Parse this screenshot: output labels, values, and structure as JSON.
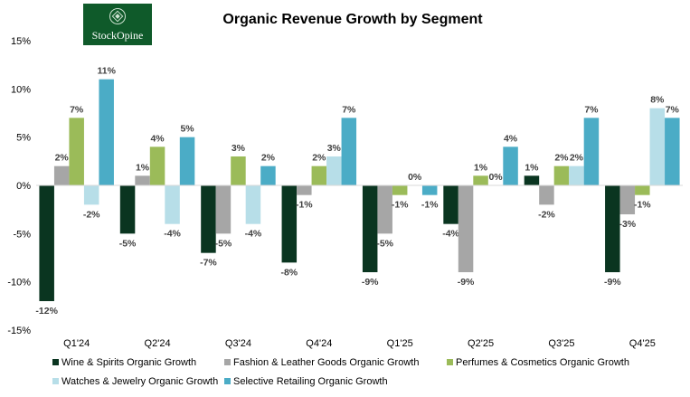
{
  "logo": {
    "text": "StockOpine",
    "bg": "#0f5a2a"
  },
  "chart_data": {
    "type": "bar",
    "title": "Organic Revenue Growth by Segment",
    "xlabel": "",
    "ylabel": "",
    "ylim": [
      -15,
      15
    ],
    "yticks": [
      15,
      10,
      5,
      0,
      -5,
      -10,
      -15
    ],
    "ytick_labels": [
      "15%",
      "10%",
      "5%",
      "0%",
      "-5%",
      "-10%",
      "-15%"
    ],
    "categories": [
      "Q1'24",
      "Q2'24",
      "Q3'24",
      "Q4'24",
      "Q1'25",
      "Q2'25",
      "Q3'25",
      "Q4'25"
    ],
    "grid": false,
    "legend": "bottom",
    "series": [
      {
        "name": "Wine & Spirits Organic Growth",
        "color": "#0a3520",
        "values": [
          -12,
          -5,
          -7,
          -8,
          -9,
          -4,
          1,
          -9
        ]
      },
      {
        "name": "Fashion & Leather Goods Organic Growth",
        "color": "#a6a6a6",
        "values": [
          2,
          1,
          -5,
          -1,
          -5,
          -9,
          -2,
          -3
        ]
      },
      {
        "name": "Perfumes & Cosmetics Organic Growth",
        "color": "#9bbb59",
        "values": [
          7,
          4,
          3,
          2,
          -1,
          1,
          2,
          -1
        ]
      },
      {
        "name": "Watches & Jewelry Organic Growth",
        "color": "#b7dee8",
        "values": [
          -2,
          -4,
          -4,
          3,
          0,
          0,
          2,
          8
        ]
      },
      {
        "name": "Selective Retailing Organic Growth",
        "color": "#4bacc6",
        "values": [
          11,
          5,
          2,
          7,
          -1,
          4,
          7,
          7
        ]
      }
    ]
  }
}
